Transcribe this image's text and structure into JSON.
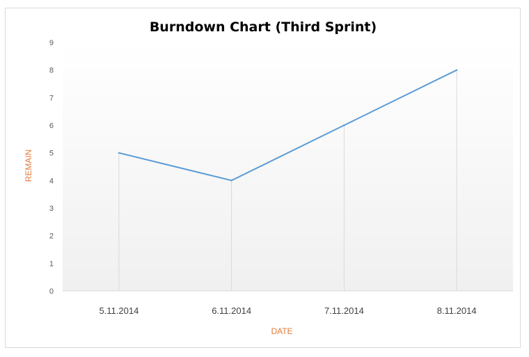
{
  "chart_data": {
    "type": "line",
    "title": "Burndown Chart (Third Sprint)",
    "xlabel": "DATE",
    "ylabel": "REMAIN",
    "categories": [
      "5.11.2014",
      "6.11.2014",
      "7.11.2014",
      "8.11.2014"
    ],
    "series": [
      {
        "values": [
          5,
          4,
          6,
          8
        ]
      }
    ],
    "ylim": [
      0,
      9
    ],
    "yticks": [
      "0",
      "1",
      "2",
      "3",
      "4",
      "5",
      "6",
      "7",
      "8",
      "9"
    ],
    "grid": false,
    "drop_lines": true,
    "legend": "none",
    "colors": {
      "line": "#5b9bd5",
      "axis_title": "#e07b39",
      "drop_line": "#d9d9d9",
      "plot_bg_top": "#ffffff",
      "plot_bg_bottom": "#f0f0f0"
    }
  }
}
